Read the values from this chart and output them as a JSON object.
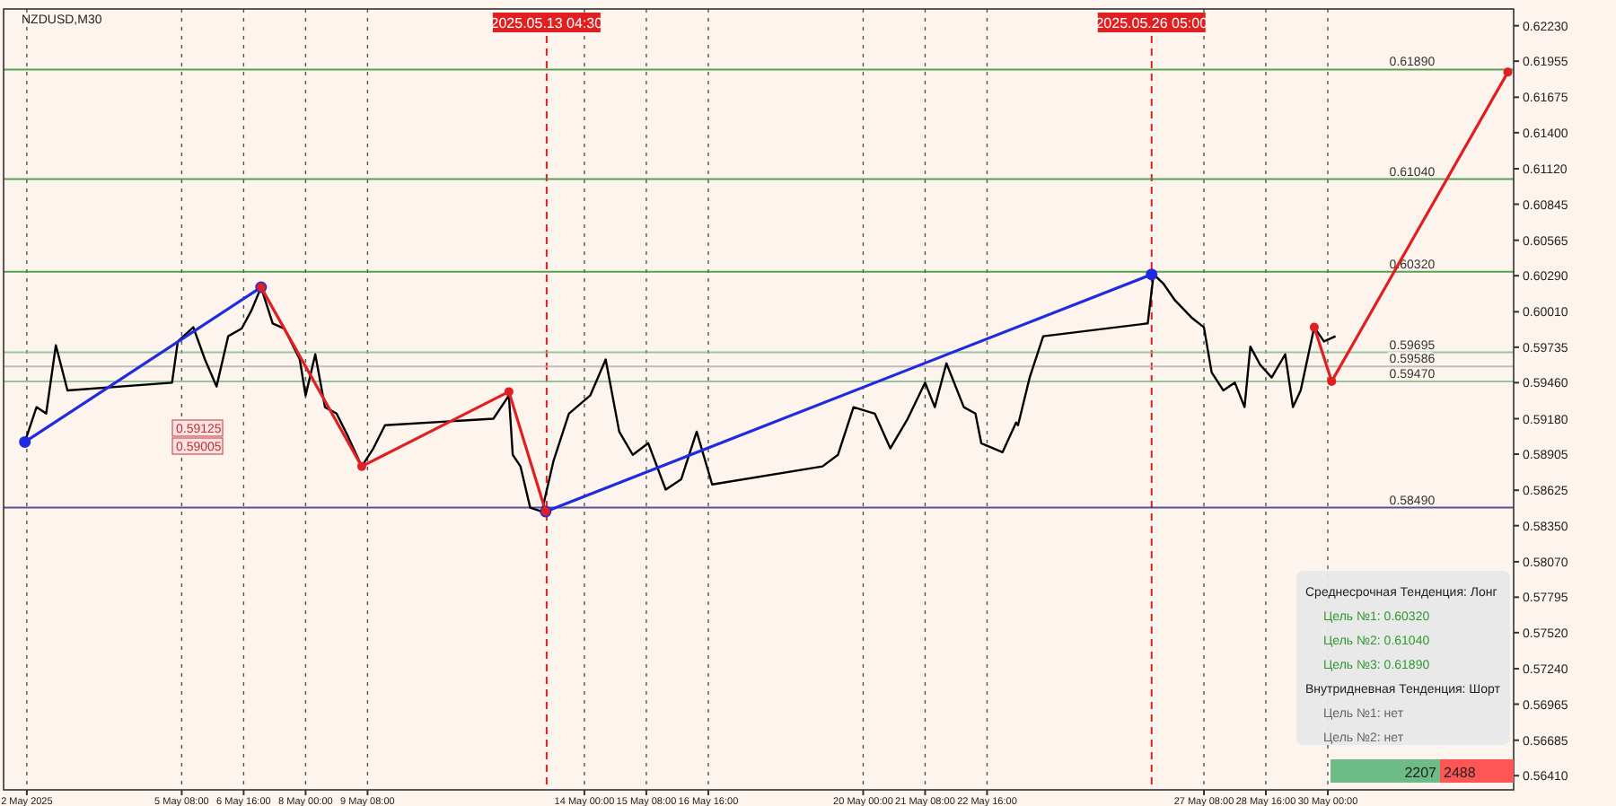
{
  "chart_data": {
    "type": "line",
    "title": "NZDUSD,M30",
    "x": [
      "2025-05-01T23:00",
      "2025-05-02T05:00",
      "2025-05-02T10:00",
      "2025-05-02T15:00",
      "2025-05-02T21:00",
      "2025-05-05T03:00",
      "2025-05-05T06:00",
      "2025-05-05T14:00",
      "2025-05-05T20:00",
      "2025-05-06T02:00",
      "2025-05-06T08:00",
      "2025-05-06T15:00",
      "2025-05-06T20:00",
      "2025-05-07T01:00",
      "2025-05-07T07:00",
      "2025-05-07T13:00",
      "2025-05-07T21:00",
      "2025-05-08T00:00",
      "2025-05-08T05:00",
      "2025-05-08T10:00",
      "2025-05-08T16:00",
      "2025-05-08T22:00",
      "2025-05-09T05:00",
      "2025-05-09T11:00",
      "2025-05-09T17:00",
      "2025-05-12T01:00",
      "2025-05-12T09:00",
      "2025-05-12T11:00",
      "2025-05-12T15:00",
      "2025-05-12T20:00",
      "2025-05-13T02:00",
      "2025-05-13T08:00",
      "2025-05-13T16:00",
      "2025-05-14T03:00",
      "2025-05-14T11:00",
      "2025-05-14T18:00",
      "2025-05-15T01:00",
      "2025-05-15T09:00",
      "2025-05-15T18:00",
      "2025-05-16T02:00",
      "2025-05-16T10:00",
      "2025-05-16T18:00",
      "2025-05-19T03:00",
      "2025-05-19T11:00",
      "2025-05-19T19:00",
      "2025-05-20T06:00",
      "2025-05-20T14:00",
      "2025-05-20T23:00",
      "2025-05-21T08:00",
      "2025-05-21T13:00",
      "2025-05-21T19:00",
      "2025-05-22T04:00",
      "2025-05-22T10:00",
      "2025-05-22T13:00",
      "2025-05-23T00:00",
      "2025-05-23T07:00",
      "2025-05-23T08:00",
      "2025-05-23T14:00",
      "2025-05-23T21:00",
      "2025-05-26T03:00",
      "2025-05-26T06:00",
      "2025-05-26T11:00",
      "2025-05-26T17:00",
      "2025-05-27T02:00",
      "2025-05-27T08:00",
      "2025-05-27T12:00",
      "2025-05-27T18:00",
      "2025-05-28T00:00",
      "2025-05-28T05:00",
      "2025-05-28T08:00",
      "2025-05-28T13:00",
      "2025-05-28T19:00",
      "2025-05-29T02:00",
      "2025-05-29T06:00",
      "2025-05-29T10:00",
      "2025-05-29T14:00",
      "2025-05-29T17:00",
      "2025-05-29T22:00",
      "2025-05-30T04:00"
    ],
    "series": [
      {
        "color": "#000000",
        "values": [
          0.59,
          0.5927,
          0.5922,
          0.5975,
          0.594,
          0.5946,
          0.5978,
          0.5989,
          0.5964,
          0.5943,
          0.5982,
          0.5988,
          0.6002,
          0.602,
          0.5992,
          0.5988,
          0.5964,
          0.5936,
          0.5968,
          0.5927,
          0.5922,
          0.5904,
          0.5881,
          0.5895,
          0.5913,
          0.5918,
          0.5936,
          0.589,
          0.5881,
          0.5849,
          0.5846,
          0.5885,
          0.5922,
          0.5936,
          0.5964,
          0.5908,
          0.589,
          0.5899,
          0.5863,
          0.5871,
          0.5908,
          0.5867,
          0.5881,
          0.589,
          0.5927,
          0.5922,
          0.5895,
          0.5918,
          0.5946,
          0.5927,
          0.5961,
          0.5927,
          0.5922,
          0.5899,
          0.5892,
          0.5915,
          0.5913,
          0.595,
          0.5982,
          0.5992,
          0.603,
          0.6023,
          0.601,
          0.5996,
          0.5989,
          0.5954,
          0.594,
          0.5946,
          0.5927,
          0.5974,
          0.596,
          0.595,
          0.5968,
          0.5927,
          0.594,
          0.5968,
          0.5989,
          0.5978,
          0.5982
        ]
      },
      {
        "type": "line",
        "color": "#1e2be0",
        "marker": "circle",
        "x": [
          "2025-05-01T23:00",
          "2025-05-07T01:00",
          "2025-05-08T21:00",
          "2025-05-13T04:00",
          "2025-05-26T05:00"
        ],
        "values": [
          0.59,
          0.602,
          null,
          0.5846,
          0.603
        ]
      },
      {
        "type": "line",
        "color": "#e02020",
        "marker": "circle",
        "x": [
          "2025-05-07T01:00",
          "2025-05-09T05:00",
          "2025-05-12T09:00",
          "2025-05-13T04:00",
          "2025-05-20T12:00",
          "2025-05-29T17:00",
          "2025-05-30T02:00",
          "2025-06-02T21:00"
        ],
        "values": [
          0.602,
          0.5881,
          0.5939,
          0.5846,
          null,
          0.5989,
          0.5947,
          0.6187
        ]
      }
    ],
    "xlim": [
      "2025-05-01T12:00",
      "2025-06-03T00:00"
    ],
    "xticks": [
      {
        "value": "2025-05-02",
        "label": "2 May 2025"
      },
      {
        "value": "2025-05-05T08:00",
        "label": "5 May 08:00"
      },
      {
        "value": "2025-05-06T16:00",
        "label": "6 May 16:00"
      },
      {
        "value": "2025-05-08",
        "label": "8 May 00:00"
      },
      {
        "value": "2025-05-09T08:00",
        "label": "9 May 08:00"
      },
      {
        "value": "2025-05-14",
        "label": "14 May 00:00"
      },
      {
        "value": "2025-05-15T08:00",
        "label": "15 May 08:00"
      },
      {
        "value": "2025-05-16T16:00",
        "label": "16 May 16:00"
      },
      {
        "value": "2025-05-20",
        "label": "20 May 00:00"
      },
      {
        "value": "2025-05-21T08:00",
        "label": "21 May 08:00"
      },
      {
        "value": "2025-05-22T16:00",
        "label": "22 May 16:00"
      },
      {
        "value": "2025-05-27T08:00",
        "label": "27 May 08:00"
      },
      {
        "value": "2025-05-28T16:00",
        "label": "28 May 16:00"
      },
      {
        "value": "2025-05-30",
        "label": "30 May 00:00"
      }
    ],
    "ylim": [
      0.563,
      0.6236
    ],
    "yticks": [
      {
        "value": 0.6223,
        "label": "0.62230"
      },
      {
        "value": 0.61955,
        "label": "0.61955"
      },
      {
        "value": 0.61675,
        "label": "0.61675"
      },
      {
        "value": 0.614,
        "label": "0.61400"
      },
      {
        "value": 0.6112,
        "label": "0.61120"
      },
      {
        "value": 0.60845,
        "label": "0.60845"
      },
      {
        "value": 0.60565,
        "label": "0.60565"
      },
      {
        "value": 0.6029,
        "label": "0.60290"
      },
      {
        "value": 0.6001,
        "label": "0.60010"
      },
      {
        "value": 0.59735,
        "label": "0.59735"
      },
      {
        "value": 0.5946,
        "label": "0.59460"
      },
      {
        "value": 0.5918,
        "label": "0.59180"
      },
      {
        "value": 0.58905,
        "label": "0.58905"
      },
      {
        "value": 0.58625,
        "label": "0.58625"
      },
      {
        "value": 0.5835,
        "label": "0.58350"
      },
      {
        "value": 0.5807,
        "label": "0.58070"
      },
      {
        "value": 0.57795,
        "label": "0.57795"
      },
      {
        "value": 0.5752,
        "label": "0.57520"
      },
      {
        "value": 0.5724,
        "label": "0.57240"
      },
      {
        "value": 0.56965,
        "label": "0.56965"
      },
      {
        "value": 0.56685,
        "label": "0.56685"
      },
      {
        "value": 0.5641,
        "label": "0.56410"
      }
    ],
    "grid": "x",
    "ref_lines": [
      {
        "axis": "x",
        "value": "2025-05-13T04:30",
        "label": "2025.05.13 04:30",
        "color": "#e02020",
        "line_style": "dashed"
      },
      {
        "axis": "x",
        "value": "2025-05-26T05:00",
        "label": "2025.05.26 05:00",
        "color": "#e02020",
        "line_style": "dashed"
      },
      {
        "axis": "y",
        "value": 0.6189,
        "label": "0.61890",
        "color": "#2e8b2e"
      },
      {
        "axis": "y",
        "value": 0.6104,
        "label": "0.61040",
        "color": "#2e8b2e"
      },
      {
        "axis": "y",
        "value": 0.6032,
        "label": "0.60320",
        "color": "#2e8b2e"
      },
      {
        "axis": "y",
        "value": 0.59695,
        "label": "0.59695",
        "color": "#7fb98a"
      },
      {
        "axis": "y",
        "value": 0.5947,
        "label": "0.59470",
        "color": "#7fb98a"
      },
      {
        "axis": "y",
        "value": 0.5849,
        "label": "0.58490",
        "color": "#2a2a80"
      },
      {
        "axis": "y",
        "value": 0.59586,
        "label": "0.59586",
        "color": "#b0b0b0"
      }
    ],
    "annotations": [
      "Среднесрочная Тенденция: Лонг",
      "Цель №1: 0.60320",
      "Цель №2: 0.61040",
      "Цель №3: 0.61890",
      "Внутридневная Тенденция: Шорт",
      "Цель №1: нет",
      "Цель №2: нет",
      "2207",
      "2488",
      "0.59125",
      "0.59005"
    ]
  }
}
